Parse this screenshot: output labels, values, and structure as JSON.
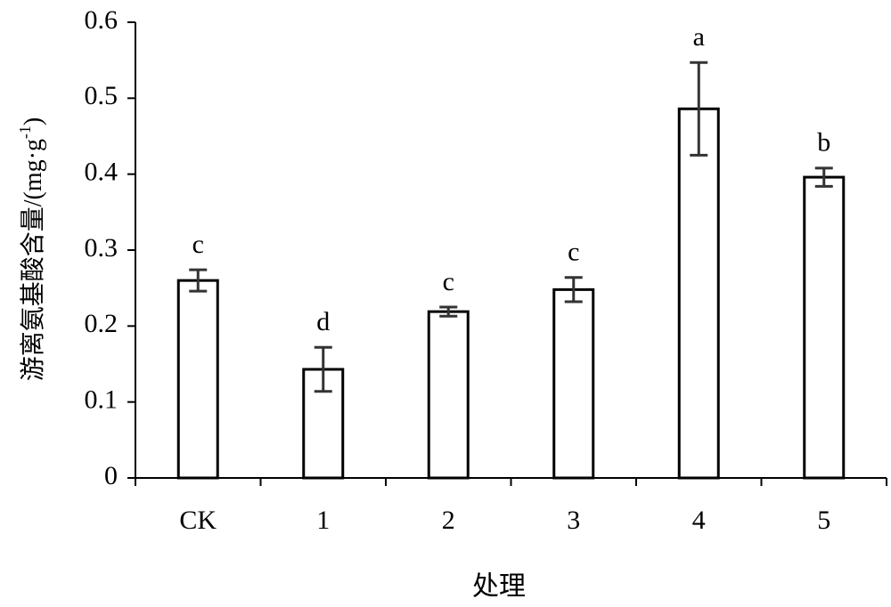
{
  "chart_data": {
    "type": "bar",
    "x_label": "处理",
    "y_label": {
      "main": "游离氨基酸含量/(mg·g",
      "superscript": "-1",
      "close": ")"
    },
    "categories": [
      "CK",
      "1",
      "2",
      "3",
      "4",
      "5"
    ],
    "values": [
      0.26,
      0.143,
      0.219,
      0.248,
      0.486,
      0.396
    ],
    "errors": [
      0.014,
      0.029,
      0.006,
      0.016,
      0.061,
      0.012
    ],
    "annotations": [
      "c",
      "d",
      "c",
      "c",
      "a",
      "b"
    ],
    "color": "#ffffff",
    "ylim": [
      0,
      0.6
    ],
    "yticks": [
      0,
      0.1,
      0.2,
      0.3,
      0.4,
      0.5,
      0.6
    ],
    "grid": false
  }
}
